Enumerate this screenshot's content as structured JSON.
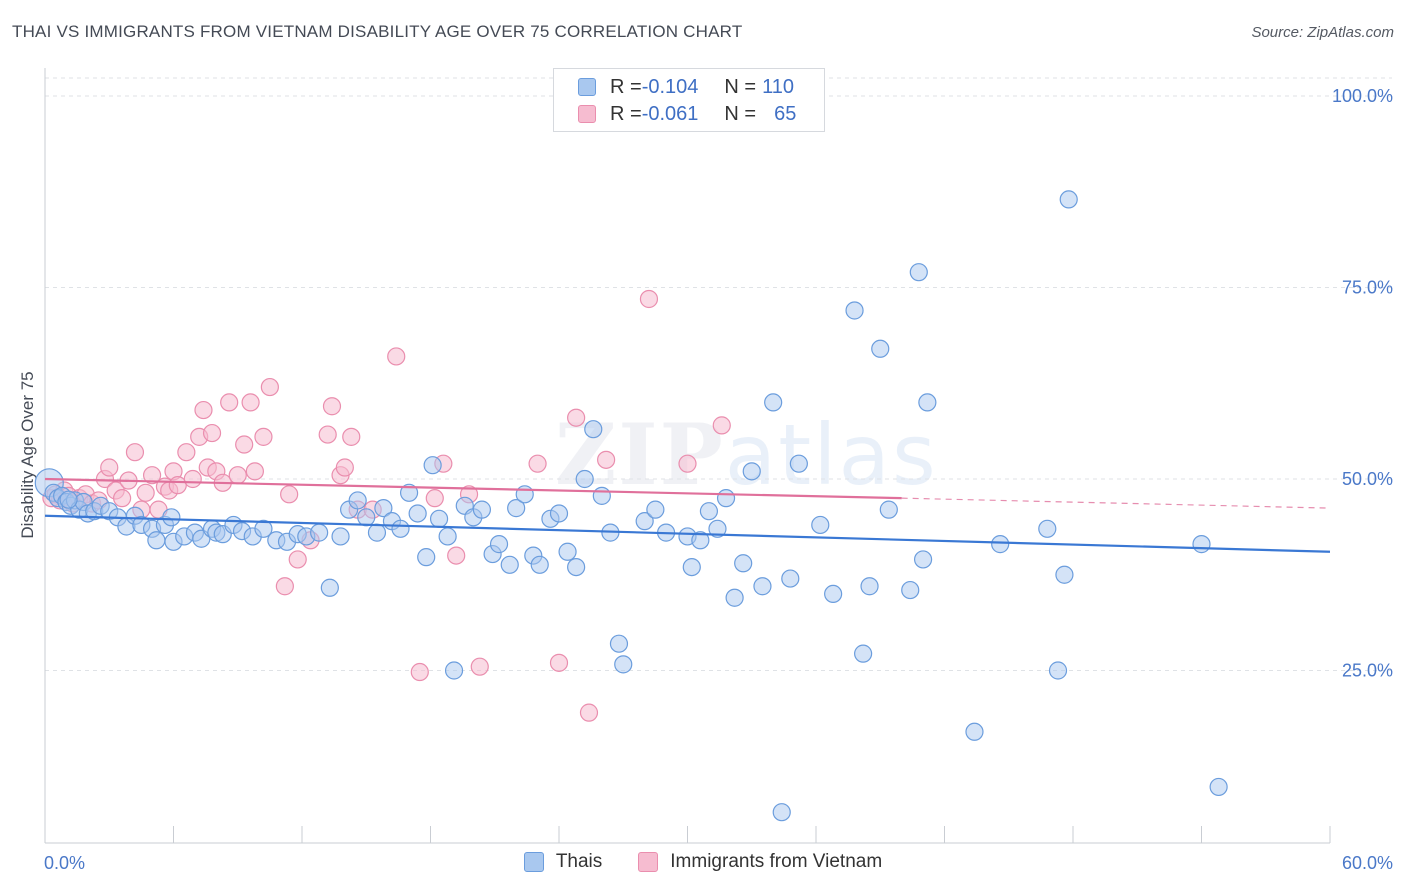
{
  "title": "THAI VS IMMIGRANTS FROM VIETNAM DISABILITY AGE OVER 75 CORRELATION CHART",
  "source": "Source: ZipAtlas.com",
  "watermark": {
    "zip": "ZIP",
    "atlas": "atlas"
  },
  "legend": {
    "rows": [
      {
        "r_label": "R = ",
        "r_value": "-0.104",
        "n_label": "N = ",
        "n_value": "110"
      },
      {
        "r_label": "R = ",
        "r_value": "-0.061",
        "n_label": "N = ",
        "n_value": "65"
      }
    ]
  },
  "bottom_legend": [
    "Thais",
    "Immigrants from Vietnam"
  ],
  "colors": {
    "blue_fill": "#a9c8ef",
    "blue_stroke": "#6b9ddd",
    "blue_line": "#3a78d4",
    "pink_fill": "#f6bcd0",
    "pink_stroke": "#ea8eae",
    "pink_line": "#e0709b",
    "grid": "#dfe2e6",
    "tick": "#4a78c8"
  },
  "chart_data": {
    "type": "scatter",
    "xlabel": "",
    "ylabel": "Disability Age Over 75",
    "xlim": [
      0,
      60
    ],
    "ylim": [
      0,
      105
    ],
    "x_tick_labels": [
      "0.0%",
      "60.0%"
    ],
    "y_ticks": [
      25,
      50,
      75,
      100
    ],
    "y_tick_labels": [
      "25.0%",
      "50.0%",
      "75.0%",
      "100.0%"
    ],
    "grid": true,
    "legend_position": "top-center",
    "series": [
      {
        "name": "Thais",
        "trend": {
          "x": [
            0,
            60
          ],
          "y": [
            45.2,
            40.5
          ]
        },
        "points": [
          [
            0.2,
            49.5
          ],
          [
            0.4,
            48.2
          ],
          [
            0.6,
            47.5
          ],
          [
            0.8,
            47.8
          ],
          [
            1.0,
            47.0
          ],
          [
            1.2,
            46.5
          ],
          [
            1.4,
            47.2
          ],
          [
            1.6,
            46.0
          ],
          [
            1.8,
            47.0
          ],
          [
            2.0,
            45.5
          ],
          [
            2.3,
            45.8
          ],
          [
            2.6,
            46.5
          ],
          [
            3.0,
            45.8
          ],
          [
            3.4,
            45.0
          ],
          [
            3.8,
            43.8
          ],
          [
            4.2,
            45.2
          ],
          [
            4.5,
            44.0
          ],
          [
            5.0,
            43.5
          ],
          [
            5.2,
            42.0
          ],
          [
            5.6,
            44.0
          ],
          [
            5.9,
            45.0
          ],
          [
            6.0,
            41.8
          ],
          [
            6.5,
            42.5
          ],
          [
            7.0,
            43.0
          ],
          [
            7.3,
            42.2
          ],
          [
            7.8,
            43.5
          ],
          [
            8.0,
            43.0
          ],
          [
            8.3,
            42.8
          ],
          [
            8.8,
            44.0
          ],
          [
            9.2,
            43.2
          ],
          [
            9.7,
            42.5
          ],
          [
            10.2,
            43.5
          ],
          [
            10.8,
            42.0
          ],
          [
            11.3,
            41.8
          ],
          [
            11.8,
            42.8
          ],
          [
            12.2,
            42.5
          ],
          [
            12.8,
            43.0
          ],
          [
            13.3,
            35.8
          ],
          [
            13.8,
            42.5
          ],
          [
            14.2,
            46.0
          ],
          [
            14.6,
            47.2
          ],
          [
            15.0,
            45.0
          ],
          [
            15.5,
            43.0
          ],
          [
            15.8,
            46.2
          ],
          [
            16.2,
            44.5
          ],
          [
            16.6,
            43.5
          ],
          [
            17.0,
            48.2
          ],
          [
            17.4,
            45.5
          ],
          [
            17.8,
            39.8
          ],
          [
            18.1,
            51.8
          ],
          [
            18.4,
            44.8
          ],
          [
            18.8,
            42.5
          ],
          [
            19.1,
            25.0
          ],
          [
            19.6,
            46.5
          ],
          [
            20.0,
            45.0
          ],
          [
            20.4,
            46.0
          ],
          [
            20.9,
            40.2
          ],
          [
            21.2,
            41.5
          ],
          [
            21.7,
            38.8
          ],
          [
            22.0,
            46.2
          ],
          [
            22.4,
            48.0
          ],
          [
            22.8,
            40.0
          ],
          [
            23.1,
            38.8
          ],
          [
            23.6,
            44.8
          ],
          [
            24.0,
            45.5
          ],
          [
            24.4,
            40.5
          ],
          [
            24.8,
            38.5
          ],
          [
            25.2,
            50.0
          ],
          [
            25.6,
            56.5
          ],
          [
            26.0,
            47.8
          ],
          [
            26.4,
            43.0
          ],
          [
            26.8,
            28.5
          ],
          [
            27.0,
            25.8
          ],
          [
            28.0,
            44.5
          ],
          [
            28.5,
            46.0
          ],
          [
            29.0,
            43.0
          ],
          [
            30.0,
            42.5
          ],
          [
            30.2,
            38.5
          ],
          [
            30.6,
            42.0
          ],
          [
            31.0,
            45.8
          ],
          [
            31.4,
            43.5
          ],
          [
            31.8,
            47.5
          ],
          [
            32.2,
            34.5
          ],
          [
            32.6,
            39.0
          ],
          [
            33.0,
            51.0
          ],
          [
            33.5,
            36.0
          ],
          [
            34.0,
            60.0
          ],
          [
            34.4,
            6.5
          ],
          [
            34.8,
            37.0
          ],
          [
            35.2,
            52.0
          ],
          [
            36.2,
            44.0
          ],
          [
            36.8,
            35.0
          ],
          [
            37.8,
            72.0
          ],
          [
            38.2,
            27.2
          ],
          [
            38.5,
            36.0
          ],
          [
            39.0,
            67.0
          ],
          [
            39.4,
            46.0
          ],
          [
            40.4,
            35.5
          ],
          [
            40.8,
            77.0
          ],
          [
            41.0,
            39.5
          ],
          [
            41.2,
            60.0
          ],
          [
            43.4,
            17.0
          ],
          [
            44.6,
            41.5
          ],
          [
            46.8,
            43.5
          ],
          [
            47.3,
            25.0
          ],
          [
            47.8,
            86.5
          ],
          [
            47.6,
            37.5
          ],
          [
            54.0,
            41.5
          ],
          [
            54.8,
            9.8
          ],
          [
            1.1,
            47.3
          ]
        ]
      },
      {
        "name": "Immigrants from Vietnam",
        "trend": {
          "x": [
            0,
            40
          ],
          "y": [
            50.0,
            47.5
          ],
          "dash_to": [
            60,
            46.2
          ]
        },
        "points": [
          [
            0.3,
            47.5
          ],
          [
            0.5,
            48.0
          ],
          [
            0.7,
            47.2
          ],
          [
            0.9,
            48.5
          ],
          [
            1.1,
            47.8
          ],
          [
            1.3,
            46.8
          ],
          [
            1.6,
            47.5
          ],
          [
            1.9,
            48.0
          ],
          [
            2.2,
            46.8
          ],
          [
            2.5,
            47.2
          ],
          [
            2.8,
            50.0
          ],
          [
            3.0,
            51.5
          ],
          [
            3.3,
            48.5
          ],
          [
            3.6,
            47.5
          ],
          [
            3.9,
            49.8
          ],
          [
            4.2,
            53.5
          ],
          [
            4.5,
            46.0
          ],
          [
            4.7,
            48.2
          ],
          [
            5.0,
            50.5
          ],
          [
            5.3,
            46.0
          ],
          [
            5.6,
            49.0
          ],
          [
            5.8,
            48.5
          ],
          [
            6.0,
            51.0
          ],
          [
            6.2,
            49.2
          ],
          [
            6.6,
            53.5
          ],
          [
            6.9,
            50.0
          ],
          [
            7.2,
            55.5
          ],
          [
            7.4,
            59.0
          ],
          [
            7.6,
            51.5
          ],
          [
            7.8,
            56.0
          ],
          [
            8.0,
            51.0
          ],
          [
            8.3,
            49.5
          ],
          [
            8.6,
            60.0
          ],
          [
            9.0,
            50.5
          ],
          [
            9.3,
            54.5
          ],
          [
            9.6,
            60.0
          ],
          [
            9.8,
            51.0
          ],
          [
            10.2,
            55.5
          ],
          [
            10.5,
            62.0
          ],
          [
            11.2,
            36.0
          ],
          [
            11.4,
            48.0
          ],
          [
            11.8,
            39.5
          ],
          [
            12.4,
            42.0
          ],
          [
            13.2,
            55.8
          ],
          [
            13.4,
            59.5
          ],
          [
            13.8,
            50.5
          ],
          [
            14.0,
            51.5
          ],
          [
            14.3,
            55.5
          ],
          [
            14.6,
            46.0
          ],
          [
            15.3,
            46.0
          ],
          [
            16.4,
            66.0
          ],
          [
            17.5,
            24.8
          ],
          [
            18.2,
            47.5
          ],
          [
            18.6,
            52.0
          ],
          [
            19.2,
            40.0
          ],
          [
            19.8,
            48.0
          ],
          [
            20.3,
            25.5
          ],
          [
            23.0,
            52.0
          ],
          [
            24.0,
            26.0
          ],
          [
            24.8,
            58.0
          ],
          [
            25.4,
            19.5
          ],
          [
            26.2,
            52.5
          ],
          [
            28.2,
            73.5
          ],
          [
            30.0,
            52.0
          ],
          [
            31.6,
            57.0
          ]
        ]
      }
    ]
  }
}
